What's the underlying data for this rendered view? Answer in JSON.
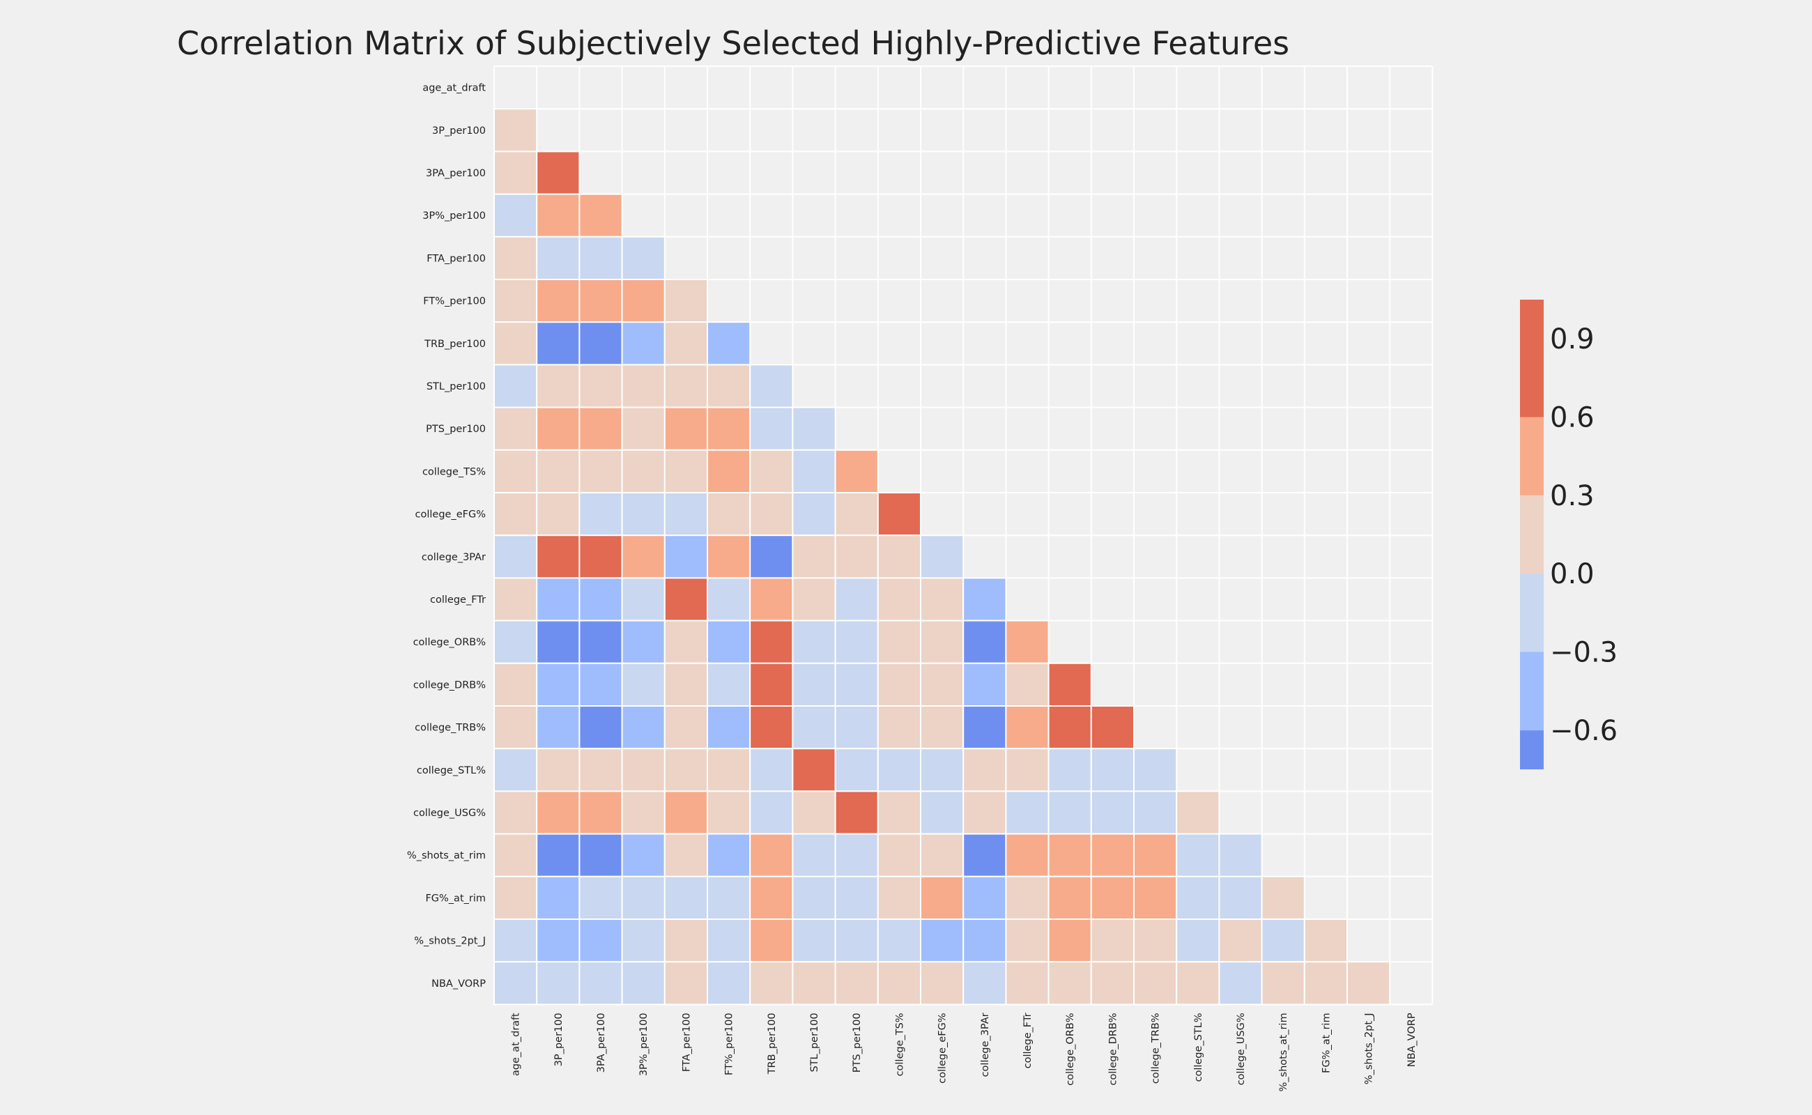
{
  "chart_data": {
    "type": "heatmap",
    "title": "Correlation Matrix of Subjectively Selected Highly-Predictive Features",
    "mask": "upper-triangle",
    "features": [
      "age_at_draft",
      "3P_per100",
      "3PA_per100",
      "3P%_per100",
      "FTA_per100",
      "FT%_per100",
      "TRB_per100",
      "STL_per100",
      "PTS_per100",
      "college_TS%",
      "college_eFG%",
      "college_3PAr",
      "college_FTr",
      "college_ORB%",
      "college_DRB%",
      "college_TRB%",
      "college_STL%",
      "college_USG%",
      "%_shots_at_rim",
      "FG%_at_rim",
      "%_shots_2pt_J",
      "NBA_VORP"
    ],
    "lower_triangle_values": [
      [],
      [
        0.15
      ],
      [
        0.15,
        0.9
      ],
      [
        -0.15,
        0.5,
        0.5
      ],
      [
        0.15,
        -0.15,
        -0.15,
        -0.15
      ],
      [
        0.15,
        0.5,
        0.5,
        0.5,
        0.15
      ],
      [
        0.15,
        -0.8,
        -0.8,
        -0.5,
        0.15,
        -0.5
      ],
      [
        -0.15,
        0.15,
        0.15,
        0.15,
        0.15,
        0.15,
        -0.15
      ],
      [
        0.15,
        0.5,
        0.5,
        0.15,
        0.5,
        0.5,
        -0.15,
        -0.15
      ],
      [
        0.15,
        0.15,
        0.15,
        0.15,
        0.15,
        0.5,
        0.15,
        -0.15,
        0.5
      ],
      [
        0.15,
        0.15,
        -0.15,
        -0.15,
        -0.15,
        0.15,
        0.15,
        -0.15,
        0.15,
        0.9
      ],
      [
        -0.15,
        0.9,
        0.9,
        0.5,
        -0.5,
        0.5,
        -0.8,
        0.15,
        0.15,
        0.15,
        -0.15
      ],
      [
        0.15,
        -0.5,
        -0.5,
        -0.15,
        0.9,
        -0.15,
        0.5,
        0.15,
        -0.15,
        0.15,
        0.15,
        -0.5
      ],
      [
        -0.15,
        -0.8,
        -0.8,
        -0.5,
        0.15,
        -0.5,
        0.9,
        -0.15,
        -0.15,
        0.15,
        0.15,
        -0.8,
        0.5
      ],
      [
        0.15,
        -0.5,
        -0.5,
        -0.15,
        0.15,
        -0.15,
        0.9,
        -0.15,
        -0.15,
        0.15,
        0.15,
        -0.5,
        0.15,
        0.9
      ],
      [
        0.15,
        -0.5,
        -0.8,
        -0.5,
        0.15,
        -0.5,
        0.9,
        -0.15,
        -0.15,
        0.15,
        0.15,
        -0.8,
        0.5,
        0.9,
        0.9
      ],
      [
        -0.15,
        0.15,
        0.15,
        0.15,
        0.15,
        0.15,
        -0.15,
        0.9,
        -0.15,
        -0.15,
        -0.15,
        0.15,
        0.15,
        -0.15,
        -0.15,
        -0.15
      ],
      [
        0.15,
        0.5,
        0.5,
        0.15,
        0.5,
        0.15,
        -0.15,
        0.15,
        0.9,
        0.15,
        -0.15,
        0.15,
        -0.15,
        -0.15,
        -0.15,
        -0.15,
        0.15
      ],
      [
        0.15,
        -0.8,
        -0.8,
        -0.5,
        0.15,
        -0.5,
        0.5,
        -0.15,
        -0.15,
        0.15,
        0.15,
        -0.8,
        0.5,
        0.5,
        0.5,
        0.5,
        -0.15,
        -0.15
      ],
      [
        0.15,
        -0.5,
        -0.15,
        -0.15,
        -0.15,
        -0.15,
        0.5,
        -0.15,
        -0.15,
        0.15,
        0.5,
        -0.5,
        0.15,
        0.5,
        0.5,
        0.5,
        -0.15,
        -0.15,
        0.15
      ],
      [
        -0.15,
        -0.5,
        -0.5,
        -0.15,
        0.15,
        -0.15,
        0.5,
        -0.15,
        -0.15,
        -0.15,
        -0.5,
        -0.5,
        0.15,
        0.5,
        0.15,
        0.15,
        -0.15,
        0.15,
        -0.15,
        0.15
      ],
      [
        -0.15,
        -0.15,
        -0.15,
        -0.15,
        0.15,
        -0.15,
        0.15,
        0.15,
        0.15,
        0.15,
        0.15,
        -0.15,
        0.15,
        0.15,
        0.15,
        0.15,
        0.15,
        -0.15,
        0.15,
        0.15,
        0.15
      ]
    ],
    "colorbar": {
      "range": [
        -0.75,
        1.05
      ],
      "boundaries": [
        -0.75,
        -0.6,
        -0.3,
        0.0,
        0.3,
        0.6,
        1.05
      ],
      "colors": [
        "#6f8ff0",
        "#9fbdfc",
        "#c9d7f0",
        "#ecd3c5",
        "#f7ab8a",
        "#e26952"
      ],
      "ticks": [
        0.9,
        0.6,
        0.3,
        0.0,
        -0.3,
        -0.6
      ],
      "tick_labels": [
        "0.9",
        "0.6",
        "0.3",
        "0.0",
        "−0.3",
        "−0.6"
      ]
    },
    "legend_placement": "right",
    "grid": false
  }
}
